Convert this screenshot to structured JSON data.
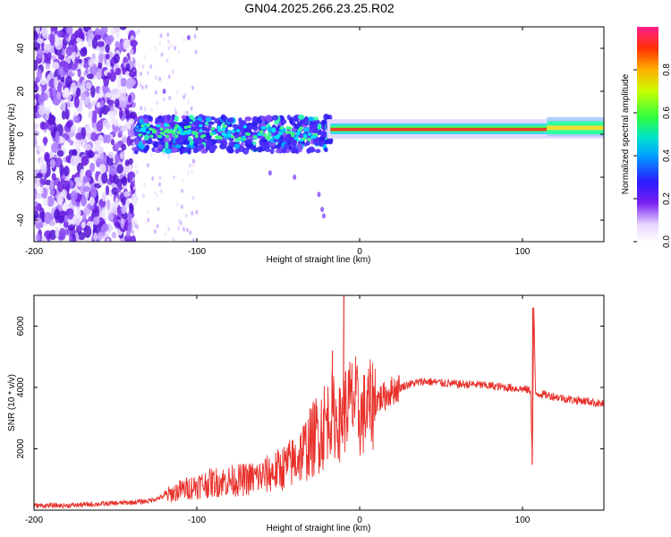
{
  "title": "GN04.2025.266.23.25.R02",
  "chart_data": [
    {
      "type": "heatmap",
      "xlabel": "Height of straight line (km)",
      "ylabel": "Frequency (Hz)",
      "xlim": [
        -200,
        150
      ],
      "ylim": [
        -50,
        50
      ],
      "xticks": [
        -200,
        -100,
        0,
        100
      ],
      "yticks": [
        -40,
        -20,
        0,
        20,
        40
      ],
      "colorbar": {
        "label": "Normalized spectral amplitude",
        "range": [
          0,
          1
        ],
        "ticks": [
          "0.0",
          "0.2",
          "0.4",
          "0.6",
          "0.8"
        ]
      },
      "features": [
        {
          "x_range": [
            -200,
            -140
          ],
          "freq_range": [
            -50,
            50
          ],
          "amplitude": "low, scattered (0.1-0.3)"
        },
        {
          "x_range": [
            -140,
            -20
          ],
          "freq_range": [
            -10,
            8
          ],
          "amplitude": "0.2-0.5 band"
        },
        {
          "x_range": [
            -20,
            150
          ],
          "center_freq": 2,
          "amplitude": "peak ~0.9-1.0 narrow line"
        }
      ],
      "grid": false
    },
    {
      "type": "line",
      "xlabel": "Height of straight line (km)",
      "ylabel": "SNR (10 * v/v)",
      "xlim": [
        -200,
        150
      ],
      "ylim": [
        0,
        7000
      ],
      "xticks": [
        -200,
        -100,
        0,
        100
      ],
      "yticks": [
        2000,
        4000,
        6000
      ],
      "color": "#e8302a",
      "series": [
        {
          "x": [
            -200,
            -180,
            -160,
            -140,
            -130,
            -120,
            -110,
            -100,
            -90,
            -80,
            -70,
            -60,
            -50,
            -40,
            -35,
            -30,
            -25,
            -20,
            -18,
            -15,
            -12,
            -10,
            -8,
            -5,
            -3,
            0,
            5,
            10,
            15,
            20,
            25,
            30,
            40,
            50,
            60,
            70,
            80,
            90,
            100,
            105,
            106,
            107,
            108,
            110,
            120,
            130,
            140,
            150
          ],
          "values": [
            150,
            150,
            200,
            250,
            300,
            450,
            650,
            800,
            900,
            950,
            1000,
            1100,
            1300,
            1600,
            1900,
            2200,
            2600,
            2900,
            3200,
            3000,
            2800,
            3100,
            3400,
            3500,
            3600,
            3000,
            3300,
            3600,
            3700,
            3900,
            4000,
            4100,
            4200,
            4150,
            4100,
            4100,
            4050,
            4000,
            3950,
            3900,
            1500,
            6600,
            3800,
            3800,
            3700,
            3600,
            3550,
            3450
          ]
        }
      ],
      "spikes": [
        {
          "x": -10,
          "value": 7000
        },
        {
          "x": -17,
          "value": 5200
        },
        {
          "x": 106,
          "value": 6600
        },
        {
          "x": 106,
          "value": 1500
        }
      ],
      "grid": false
    }
  ]
}
